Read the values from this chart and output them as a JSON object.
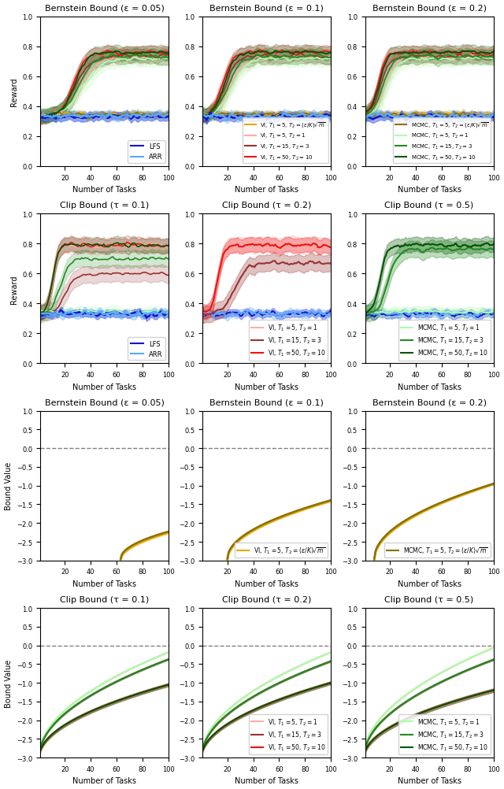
{
  "row1_titles": [
    "Bernstein Bound (ε = 0.05)",
    "Bernstein Bound (ε = 0.1)",
    "Bernstein Bound (ε = 0.2)"
  ],
  "row2_titles": [
    "Clip Bound (τ = 0.1)",
    "Clip Bound (τ = 0.2)",
    "Clip Bound (τ = 0.5)"
  ],
  "row3_titles": [
    "Bernstein Bound (ε = 0.05)",
    "Bernstein Bound (ε = 0.1)",
    "Bernstein Bound (ε = 0.2)"
  ],
  "row4_titles": [
    "Clip Bound (τ = 0.1)",
    "Clip Bound (τ = 0.2)",
    "Clip Bound (τ = 0.5)"
  ],
  "reward_ylim": [
    0.0,
    1.0
  ],
  "bound_ylim": [
    -3.0,
    1.0
  ],
  "xlabel": "Number of Tasks",
  "ylabel_reward": "Reward",
  "ylabel_bound": "Bound Value",
  "n_tasks": 100,
  "lfs_color": "#1515cc",
  "arr_color": "#55aaff",
  "vi_sqrt_color": "#e6a800",
  "vi_t1_5_t2_1_color": "#ffaaaa",
  "vi_t1_15_t2_3_color": "#993333",
  "vi_t1_50_t2_10_color": "#ee1111",
  "mcmc_sqrt_color": "#8B7000",
  "mcmc_t1_5_t2_1_color": "#aaffaa",
  "mcmc_t1_15_t2_3_color": "#228B22",
  "mcmc_t1_50_t2_10_color": "#005500",
  "reward_yticks": [
    0.0,
    0.2,
    0.4,
    0.6,
    0.8,
    1.0
  ],
  "bound_yticks": [
    1.0,
    0.5,
    0.0,
    -0.5,
    -1.0,
    -1.5,
    -2.0,
    -2.5,
    -3.0
  ]
}
